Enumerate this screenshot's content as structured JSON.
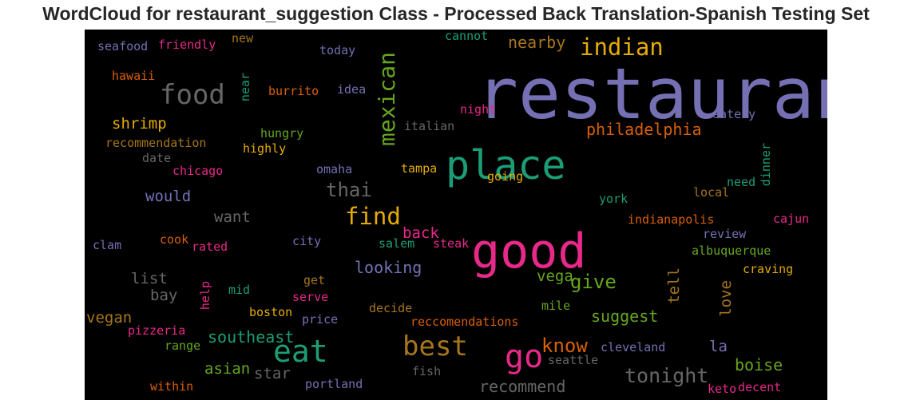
{
  "chart_data": {
    "type": "wordcloud",
    "title": "WordCloud for restaurant_suggestion Class - Processed Back Translation-Spanish Testing Set",
    "background": "#000000",
    "words": [
      {
        "text": "restaurant",
        "color": "#7570b3"
      },
      {
        "text": "good",
        "color": "#e7298a"
      },
      {
        "text": "place",
        "color": "#1b9e77"
      },
      {
        "text": "eat",
        "color": "#1b9e77"
      },
      {
        "text": "best",
        "color": "#a6761d"
      },
      {
        "text": "go",
        "color": "#e7298a"
      },
      {
        "text": "food",
        "color": "#666666"
      },
      {
        "text": "find",
        "color": "#e6ab02"
      },
      {
        "text": "indian",
        "color": "#e6ab02"
      },
      {
        "text": "mexican",
        "color": "#66a61e"
      },
      {
        "text": "tonight",
        "color": "#666666"
      },
      {
        "text": "thai",
        "color": "#666666"
      },
      {
        "text": "give",
        "color": "#66a61e"
      },
      {
        "text": "know",
        "color": "#d95f02"
      },
      {
        "text": "philadelphia",
        "color": "#d95f02"
      },
      {
        "text": "looking",
        "color": "#7570b3"
      },
      {
        "text": "recommend",
        "color": "#666666"
      },
      {
        "text": "boise",
        "color": "#66a61e"
      },
      {
        "text": "suggest",
        "color": "#66a61e"
      },
      {
        "text": "southeast",
        "color": "#1b9e77"
      },
      {
        "text": "nearby",
        "color": "#a6761d"
      },
      {
        "text": "shrimp",
        "color": "#e6ab02"
      },
      {
        "text": "would",
        "color": "#7570b3"
      },
      {
        "text": "want",
        "color": "#666666"
      },
      {
        "text": "list",
        "color": "#666666"
      },
      {
        "text": "bay",
        "color": "#666666"
      },
      {
        "text": "vegan",
        "color": "#a6761d"
      },
      {
        "text": "asian",
        "color": "#66a61e"
      },
      {
        "text": "star",
        "color": "#666666"
      },
      {
        "text": "back",
        "color": "#e7298a"
      },
      {
        "text": "vega",
        "color": "#66a61e"
      },
      {
        "text": "tell",
        "color": "#a6761d"
      },
      {
        "text": "love",
        "color": "#a6761d"
      },
      {
        "text": "la",
        "color": "#7570b3"
      },
      {
        "text": "seafood",
        "color": "#7570b3"
      },
      {
        "text": "friendly",
        "color": "#e7298a"
      },
      {
        "text": "new",
        "color": "#a6761d"
      },
      {
        "text": "today",
        "color": "#7570b3"
      },
      {
        "text": "cannot",
        "color": "#1b9e77"
      },
      {
        "text": "hawaii",
        "color": "#d95f02"
      },
      {
        "text": "near",
        "color": "#1b9e77"
      },
      {
        "text": "burrito",
        "color": "#d95f02"
      },
      {
        "text": "idea",
        "color": "#7570b3"
      },
      {
        "text": "night",
        "color": "#e7298a"
      },
      {
        "text": "eatery",
        "color": "#7570b3"
      },
      {
        "text": "italian",
        "color": "#666666"
      },
      {
        "text": "hungry",
        "color": "#66a61e"
      },
      {
        "text": "highly",
        "color": "#e6ab02"
      },
      {
        "text": "recommendation",
        "color": "#a6761d"
      },
      {
        "text": "date",
        "color": "#666666"
      },
      {
        "text": "chicago",
        "color": "#e7298a"
      },
      {
        "text": "omaha",
        "color": "#7570b3"
      },
      {
        "text": "tampa",
        "color": "#e6ab02"
      },
      {
        "text": "going",
        "color": "#e6ab02"
      },
      {
        "text": "dinner",
        "color": "#1b9e77"
      },
      {
        "text": "need",
        "color": "#1b9e77"
      },
      {
        "text": "local",
        "color": "#a6761d"
      },
      {
        "text": "york",
        "color": "#1b9e77"
      },
      {
        "text": "indianapolis",
        "color": "#d95f02"
      },
      {
        "text": "cajun",
        "color": "#e7298a"
      },
      {
        "text": "review",
        "color": "#7570b3"
      },
      {
        "text": "albuquerque",
        "color": "#66a61e"
      },
      {
        "text": "craving",
        "color": "#e6ab02"
      },
      {
        "text": "clam",
        "color": "#7570b3"
      },
      {
        "text": "cook",
        "color": "#d95f02"
      },
      {
        "text": "rated",
        "color": "#e7298a"
      },
      {
        "text": "city",
        "color": "#7570b3"
      },
      {
        "text": "salem",
        "color": "#1b9e77"
      },
      {
        "text": "steak",
        "color": "#e7298a"
      },
      {
        "text": "get",
        "color": "#a6761d"
      },
      {
        "text": "help",
        "color": "#e7298a"
      },
      {
        "text": "mid",
        "color": "#1b9e77"
      },
      {
        "text": "serve",
        "color": "#e7298a"
      },
      {
        "text": "boston",
        "color": "#e6ab02"
      },
      {
        "text": "price",
        "color": "#7570b3"
      },
      {
        "text": "decide",
        "color": "#a6761d"
      },
      {
        "text": "mile",
        "color": "#66a61e"
      },
      {
        "text": "reccomendations",
        "color": "#d95f02"
      },
      {
        "text": "pizzeria",
        "color": "#e7298a"
      },
      {
        "text": "range",
        "color": "#66a61e"
      },
      {
        "text": "cleveland",
        "color": "#7570b3"
      },
      {
        "text": "seattle",
        "color": "#666666"
      },
      {
        "text": "fish",
        "color": "#666666"
      },
      {
        "text": "within",
        "color": "#d95f02"
      },
      {
        "text": "portland",
        "color": "#7570b3"
      },
      {
        "text": "keto",
        "color": "#e7298a"
      },
      {
        "text": "decent",
        "color": "#e7298a"
      }
    ]
  }
}
